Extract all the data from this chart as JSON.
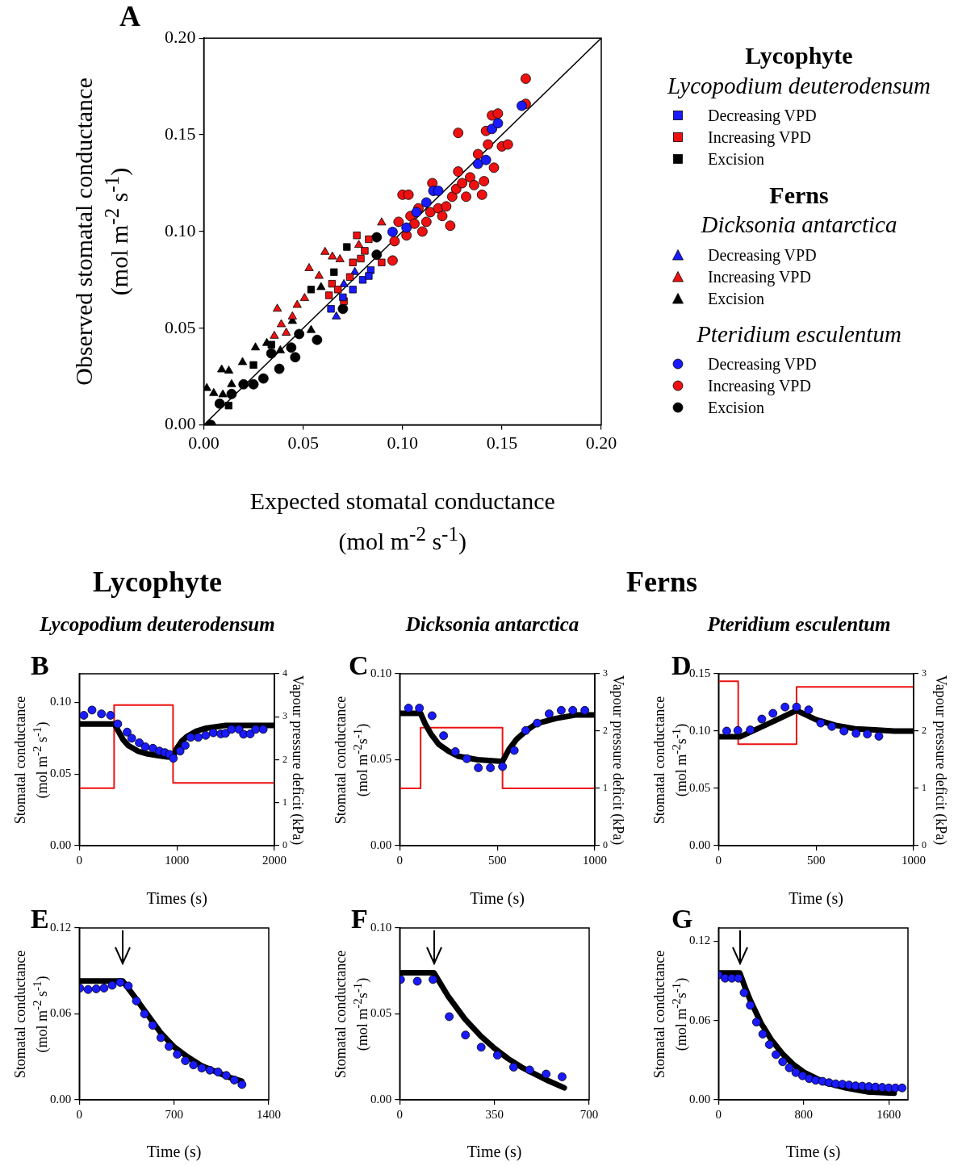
{
  "chart_data": [
    {
      "type": "scatter",
      "xlabel": "Expected stomatal conductance (mol m$^{-2}$ s$^{-1}$)",
      "ylabel": "Observed stomatal conductance (mol m$^{-2}$ s$^{-1}$)",
      "legend": "right",
      "annotations": [
        "A",
        "Lycophyte",
        "Lycopodium deuterodensum",
        "Ferns",
        "Dicksonia antarctica",
        "Pteridium esculentum"
      ],
      "xlim": [
        0,
        0.2
      ],
      "ylim": [
        0,
        0.2
      ],
      "xticks": [
        {
          "value": 0,
          "label": "0.00"
        },
        {
          "value": 0.05,
          "label": "0.05"
        },
        {
          "value": 0.1,
          "label": "0.10"
        },
        {
          "value": 0.15,
          "label": "0.15"
        },
        {
          "value": 0.2,
          "label": "0.20"
        }
      ],
      "yticks": [
        {
          "value": 0,
          "label": "0.00"
        },
        {
          "value": 0.05,
          "label": "0.05"
        },
        {
          "value": 0.1,
          "label": "0.10"
        },
        {
          "value": 0.15,
          "label": "0.15"
        },
        {
          "value": 0.2,
          "label": "0.20"
        }
      ],
      "series": [
        {
          "name": "Decreasing VPD",
          "type": "scatter",
          "marker": "square",
          "color": "#1a1aff",
          "x": [
            0.064,
            0.07,
            0.075,
            0.08,
            0.084,
            0.083
          ],
          "values": [
            0.06,
            0.066,
            0.07,
            0.075,
            0.08,
            0.077
          ]
        },
        {
          "name": "Increasing VPD",
          "type": "scatter",
          "marker": "square",
          "color": "#ee1111",
          "x": [
            0.077,
            0.083,
            0.0645,
            0.0705,
            0.075,
            0.081,
            0.0895,
            0.063,
            0.0675,
            0.0735,
            0.079
          ],
          "values": [
            0.098,
            0.096,
            0.073,
            0.064,
            0.084,
            0.09,
            0.084,
            0.067,
            0.07,
            0.0765,
            0.086
          ]
        },
        {
          "name": "Excision",
          "type": "scatter",
          "marker": "square",
          "color": "#000000",
          "x": [
            0.072,
            0.0655,
            0.054,
            0.025,
            0.0125,
            0.034
          ],
          "values": [
            0.092,
            0.079,
            0.07,
            0.031,
            0.01,
            0.0415
          ]
        },
        {
          "name": "Decreasing VPD",
          "type": "scatter",
          "marker": "triangle",
          "color": "#1a1aff",
          "x": [
            0.0667,
            0.0735,
            0.076,
            0.0705
          ],
          "values": [
            0.056,
            null,
            0.079,
            0.0727
          ]
        },
        {
          "name": "Increasing VPD",
          "type": "scatter",
          "marker": "triangle",
          "color": "#ee1111",
          "x": [
            0.0895,
            0.061,
            0.0647,
            0.0685,
            0.053,
            0.037,
            0.047,
            0.0507,
            0.058,
            0.039,
            0.0415,
            0.0446,
            0.0355,
            0.078
          ],
          "values": [
            0.1046,
            0.0894,
            0.087,
            0.0856,
            0.081,
            0.06,
            0.062,
            0.0655,
            0.077,
            0.052,
            0.0476,
            0.056,
            0.046,
            0.093
          ]
        },
        {
          "name": "Excision",
          "type": "scatter",
          "marker": "triangle",
          "color": "#000000",
          "x": [
            0.0015,
            0.005,
            0.009,
            0.0126,
            0.0096,
            0.0195,
            0.026,
            0.0317,
            0.014,
            0.0385,
            0.054,
            0.059,
            0.0446
          ],
          "values": [
            0.019,
            0.0164,
            0.0286,
            0.028,
            0.0157,
            0.0324,
            0.04,
            0.0423,
            0.021,
            0.0385,
            0.049,
            0.0712,
            0.0537
          ]
        },
        {
          "name": "Decreasing VPD",
          "type": "scatter",
          "marker": "circle",
          "color": "#1a1aff",
          "x": [
            0.095,
            0.102,
            0.107,
            0.112,
            0.1155,
            0.118,
            0.138,
            0.142,
            0.145,
            0.148,
            0.16
          ],
          "values": [
            0.0998,
            0.102,
            0.11,
            0.115,
            0.121,
            0.121,
            0.135,
            0.137,
            0.153,
            0.156,
            0.165
          ]
        },
        {
          "name": "Increasing VPD",
          "type": "scatter",
          "marker": "circle",
          "color": "#ee1111",
          "x": [
            0.095,
            0.096,
            0.098,
            0.1,
            0.102,
            0.104,
            0.106,
            0.108,
            0.11,
            0.112,
            0.114,
            0.116,
            0.118,
            0.12,
            0.122,
            0.124,
            0.125,
            0.127,
            0.128,
            0.13,
            0.132,
            0.134,
            0.136,
            0.138,
            0.14,
            0.141,
            0.142,
            0.143,
            0.145,
            0.146,
            0.148,
            0.15,
            0.153,
            0.158,
            0.162,
            0.162,
            0.1,
            0.103,
            0.115,
            0.128
          ],
          "values": [
            0.085,
            0.095,
            0.105,
            null,
            0.098,
            0.108,
            0.104,
            0.112,
            0.1,
            0.105,
            0.11,
            null,
            0.112,
            0.108,
            0.113,
            0.103,
            0.118,
            0.122,
            0.131,
            0.125,
            0.118,
            0.128,
            0.124,
            0.14,
            0.119,
            0.126,
            0.152,
            0.145,
            0.16,
            0.133,
            0.161,
            0.144,
            0.145,
            null,
            0.166,
            0.179,
            0.119,
            0.119,
            0.125,
            0.151
          ]
        },
        {
          "name": "Excision",
          "type": "scatter",
          "marker": "circle",
          "color": "#000000",
          "x": [
            0.0035,
            0.014,
            0.02,
            0.025,
            0.03,
            0.038,
            0.046,
            0.057,
            0.044,
            0.048,
            0.07,
            0.087,
            0.087,
            0.034,
            0.008
          ],
          "values": [
            0.0,
            0.016,
            0.021,
            0.021,
            0.024,
            0.029,
            0.035,
            0.044,
            0.04,
            0.047,
            0.06,
            0.097,
            0.088,
            0.037,
            0.011
          ]
        },
        {
          "type": "line",
          "color": "#000000",
          "x": [
            0,
            0.2
          ],
          "values": [
            0,
            0.2
          ]
        }
      ]
    },
    {
      "type": "scatter",
      "title": "Lycophyte",
      "subtitle": "Lycopodium deuterodensum",
      "annotations": [
        "B"
      ],
      "xlabel": "Times (s)",
      "ylabel": "Stomatal conductance (mol m$^{-2}$ s$^{-1}$)",
      "y2label": "Vapour pressure deficit (kPa)",
      "xlim": [
        0,
        2000
      ],
      "xticks": [
        0,
        1000,
        2000
      ],
      "ylim": [
        0,
        0.12
      ],
      "yticks": [
        {
          "value": 0,
          "label": "0.00"
        },
        {
          "value": 0.05,
          "label": "0.05"
        },
        {
          "value": 0.1,
          "label": "0.10"
        }
      ],
      "y2lim": [
        0,
        4
      ],
      "y2ticks": [
        0,
        1,
        2,
        3,
        4
      ],
      "series": [
        {
          "type": "scatter",
          "marker": "circle",
          "color": "#1a1aff",
          "x": [
            47,
            130,
            227,
            320,
            394,
            490,
            537,
            615,
            677,
            754,
            822,
            877,
            924,
            964,
            1033,
            1085,
            1141,
            1219,
            1296,
            1374,
            1451,
            1498,
            1560,
            1637,
            1684,
            1752,
            1808,
            1885
          ],
          "values": [
            0.091,
            0.0947,
            0.092,
            0.091,
            0.085,
            0.0793,
            0.075,
            0.0718,
            0.069,
            0.068,
            0.066,
            0.065,
            0.0637,
            0.061,
            0.066,
            0.07,
            0.0756,
            0.0756,
            0.077,
            0.0788,
            0.078,
            0.0784,
            0.0812,
            0.0812,
            0.0778,
            0.078,
            0.0812,
            0.0812
          ]
        },
        {
          "type": "line",
          "color": "#000000",
          "x": [
            0,
            360,
            400,
            450,
            500,
            600,
            700,
            800,
            900,
            960,
            1000,
            1050,
            1100,
            1200,
            1300,
            1400,
            1500,
            1700,
            2000
          ],
          "values": [
            0.085,
            0.085,
            0.08,
            0.074,
            0.07,
            0.066,
            0.064,
            0.063,
            0.062,
            0.062,
            0.068,
            0.073,
            0.076,
            0.08,
            0.082,
            0.083,
            0.084,
            0.084,
            0.084
          ]
        },
        {
          "type": "line",
          "axis": "y2",
          "color": "#ee1111",
          "x": [
            0,
            357,
            357,
            961,
            961,
            2000
          ],
          "values": [
            1.34,
            1.34,
            3.27,
            3.27,
            1.46,
            1.46
          ]
        }
      ]
    },
    {
      "type": "scatter",
      "subtitle": "Dicksonia antarctica",
      "annotations": [
        "C"
      ],
      "xlabel": "Time (s)",
      "ylabel": "Stomatal conductance (mol m$^{-2}$s$^{-1}$)",
      "y2label": "Vapour pressure deficit (kPa)",
      "xlim": [
        0,
        1000
      ],
      "xticks": [
        0,
        500,
        1000
      ],
      "ylim": [
        0,
        0.1
      ],
      "yticks": [
        {
          "value": 0,
          "label": "0.00"
        },
        {
          "value": 0.05,
          "label": "0.05"
        },
        {
          "value": 0.1,
          "label": "0.10"
        }
      ],
      "y2lim": [
        0,
        3
      ],
      "y2ticks": [
        0,
        1,
        2,
        3
      ],
      "series": [
        {
          "type": "scatter",
          "marker": "circle",
          "color": "#1a1aff",
          "x": [
            45,
            101,
            166,
            225,
            285,
            344,
            403,
            465,
            527,
            587,
            646,
            705,
            766,
            828,
            887,
            949
          ],
          "values": [
            0.08,
            0.08,
            0.0756,
            0.064,
            0.0547,
            0.0506,
            0.0453,
            0.0453,
            0.046,
            0.0554,
            0.067,
            0.0713,
            0.0767,
            0.0787,
            0.0787,
            0.0787
          ]
        },
        {
          "type": "line",
          "color": "#000000",
          "x": [
            0,
            107,
            130,
            160,
            200,
            250,
            300,
            400,
            527,
            560,
            600,
            650,
            700,
            800,
            900,
            1000
          ],
          "values": [
            0.077,
            0.077,
            0.071,
            0.065,
            0.059,
            0.055,
            0.052,
            0.05,
            0.049,
            0.056,
            0.062,
            0.067,
            0.071,
            0.074,
            0.076,
            0.076
          ]
        },
        {
          "type": "line",
          "axis": "y2",
          "color": "#ee1111",
          "x": [
            0,
            107,
            107,
            527,
            527,
            1000
          ],
          "values": [
            1.0,
            1.0,
            2.06,
            2.06,
            1.0,
            1.0
          ]
        }
      ]
    },
    {
      "type": "scatter",
      "title": "Ferns",
      "subtitle": "Pteridium esculentum",
      "annotations": [
        "D"
      ],
      "xlabel": "Time (s)",
      "ylabel": "Stomatal conductance (mol m$^{-2}$s$^{-1}$)",
      "y2label": "Vapour pressure deficit (kPa)",
      "xlim": [
        0,
        1000
      ],
      "xticks": [
        0,
        500,
        1000
      ],
      "ylim": [
        0,
        0.15
      ],
      "yticks": [
        {
          "value": 0,
          "label": "0.00"
        },
        {
          "value": 0.05,
          "label": "0.05"
        },
        {
          "value": 0.1,
          "label": "0.10"
        },
        {
          "value": 0.15,
          "label": "0.15"
        }
      ],
      "y2lim": [
        0,
        3
      ],
      "y2ticks": [
        0,
        1,
        2,
        3
      ],
      "series": [
        {
          "type": "scatter",
          "marker": "circle",
          "color": "#1a1aff",
          "x": [
            42,
            99,
            163,
            222,
            279,
            341,
            400,
            462,
            524,
            581,
            643,
            705,
            763,
            822
          ],
          "values": [
            0.1,
            0.1005,
            0.101,
            0.1105,
            0.1155,
            0.121,
            0.121,
            0.1185,
            0.107,
            0.104,
            0.1,
            0.098,
            0.0974,
            0.0955
          ]
        },
        {
          "type": "line",
          "color": "#000000",
          "x": [
            0,
            110,
            200,
            300,
            400,
            450,
            500,
            600,
            700,
            800,
            900,
            1000
          ],
          "values": [
            0.095,
            0.095,
            0.102,
            0.11,
            0.118,
            0.114,
            0.11,
            0.105,
            0.102,
            0.101,
            0.1,
            0.1
          ]
        },
        {
          "type": "line",
          "axis": "y2",
          "color": "#ee1111",
          "x": [
            0,
            101,
            101,
            400,
            400,
            1000
          ],
          "values": [
            2.87,
            2.87,
            1.77,
            1.77,
            2.77,
            2.77
          ]
        }
      ]
    },
    {
      "type": "scatter",
      "annotations": [
        "E"
      ],
      "xlabel": "Time (s)",
      "ylabel": "Stomatal conductance (mol m$^{-2}$ s$^{-1}$)",
      "xlim": [
        0,
        1400
      ],
      "xticks": [
        0,
        700,
        1400
      ],
      "ylim": [
        0,
        0.12
      ],
      "yticks": [
        {
          "value": 0,
          "label": "0.00"
        },
        {
          "value": 0.06,
          "label": "0.06"
        },
        {
          "value": 0.12,
          "label": "0.12"
        }
      ],
      "series": [
        {
          "type": "scatter",
          "marker": "circle",
          "color": "#1a1aff",
          "x": [
            4,
            65,
            125,
            183,
            243,
            302,
            362,
            422,
            482,
            543,
            603,
            663,
            724,
            784,
            844,
            905,
            965,
            1025,
            1086,
            1146,
            1202
          ],
          "values": [
            0.078,
            0.077,
            0.0775,
            0.078,
            0.08,
            0.082,
            0.0795,
            0.069,
            0.06,
            0.052,
            0.0434,
            0.0373,
            0.0318,
            0.0273,
            0.0244,
            0.0222,
            0.0207,
            0.0194,
            0.017,
            0.0138,
            0.0107
          ]
        },
        {
          "type": "line",
          "color": "#000000",
          "x": [
            0,
            320,
            400,
            500,
            600,
            700,
            800,
            900,
            1000,
            1100,
            1200
          ],
          "values": [
            0.083,
            0.083,
            0.073,
            0.06,
            0.047,
            0.037,
            0.03,
            0.024,
            0.02,
            0.016,
            0.013
          ]
        }
      ]
    },
    {
      "type": "scatter",
      "annotations": [
        "F"
      ],
      "xlabel": "Time (s)",
      "ylabel": "Stomatal conductance (mol m$^{-2}$s$^{-1}$)",
      "xlim": [
        0,
        700
      ],
      "xticks": [
        0,
        350,
        700
      ],
      "ylim": [
        0,
        0.1
      ],
      "yticks": [
        {
          "value": 0,
          "label": "0.00"
        },
        {
          "value": 0.05,
          "label": "0.05"
        },
        {
          "value": 0.1,
          "label": "0.10"
        }
      ],
      "series": [
        {
          "type": "scatter",
          "marker": "circle",
          "color": "#1a1aff",
          "x": [
            3,
            65,
            123,
            183,
            243,
            301,
            361,
            421,
            480,
            541,
            600
          ],
          "values": [
            0.07,
            0.069,
            0.07,
            0.0484,
            0.0377,
            0.0306,
            0.026,
            0.019,
            0.0174,
            0.015,
            0.0134
          ]
        },
        {
          "type": "line",
          "color": "#000000",
          "x": [
            0,
            126,
            180,
            241,
            300,
            350,
            400,
            450,
            500,
            550,
            608
          ],
          "values": [
            0.074,
            0.074,
            0.06,
            0.047,
            0.037,
            0.03,
            0.024,
            0.019,
            0.015,
            0.011,
            0.007
          ]
        }
      ]
    },
    {
      "type": "scatter",
      "annotations": [
        "G"
      ],
      "xlabel": "Time (s)",
      "ylabel": "Stomatal conductance (mol m$^{-2}$s$^{-1}$)",
      "xlim": [
        0,
        1780
      ],
      "xticks": [
        0,
        800,
        1600
      ],
      "ylim": [
        0,
        0.13
      ],
      "yticks": [
        {
          "value": 0,
          "label": "0.00"
        },
        {
          "value": 0.06,
          "label": "0.06"
        },
        {
          "value": 0.12,
          "label": "0.12"
        }
      ],
      "series": [
        {
          "type": "scatter",
          "marker": "circle",
          "color": "#1a1aff",
          "x": [
            0,
            62,
            125,
            187,
            241,
            299,
            357,
            416,
            478,
            540,
            603,
            665,
            727,
            790,
            852,
            914,
            977,
            1039,
            1101,
            1164,
            1226,
            1288,
            1351,
            1413,
            1475,
            1538,
            1600,
            1662,
            1725
          ],
          "values": [
            0.0945,
            0.092,
            0.092,
            0.092,
            0.081,
            0.0715,
            0.0588,
            0.0497,
            0.0418,
            0.0342,
            0.0288,
            0.0242,
            0.0206,
            0.0182,
            0.016,
            0.0148,
            0.014,
            0.013,
            0.0121,
            0.0118,
            0.0112,
            0.0106,
            0.0103,
            0.01,
            0.0097,
            0.0094,
            0.009,
            0.009,
            0.009
          ]
        },
        {
          "type": "line",
          "color": "#000000",
          "x": [
            0,
            200,
            250,
            300,
            400,
            500,
            600,
            700,
            800,
            1000,
            1200,
            1400,
            1650
          ],
          "values": [
            0.096,
            0.096,
            0.085,
            0.075,
            0.058,
            0.045,
            0.035,
            0.027,
            0.021,
            0.013,
            0.009,
            0.006,
            0.005
          ]
        }
      ]
    }
  ]
}
